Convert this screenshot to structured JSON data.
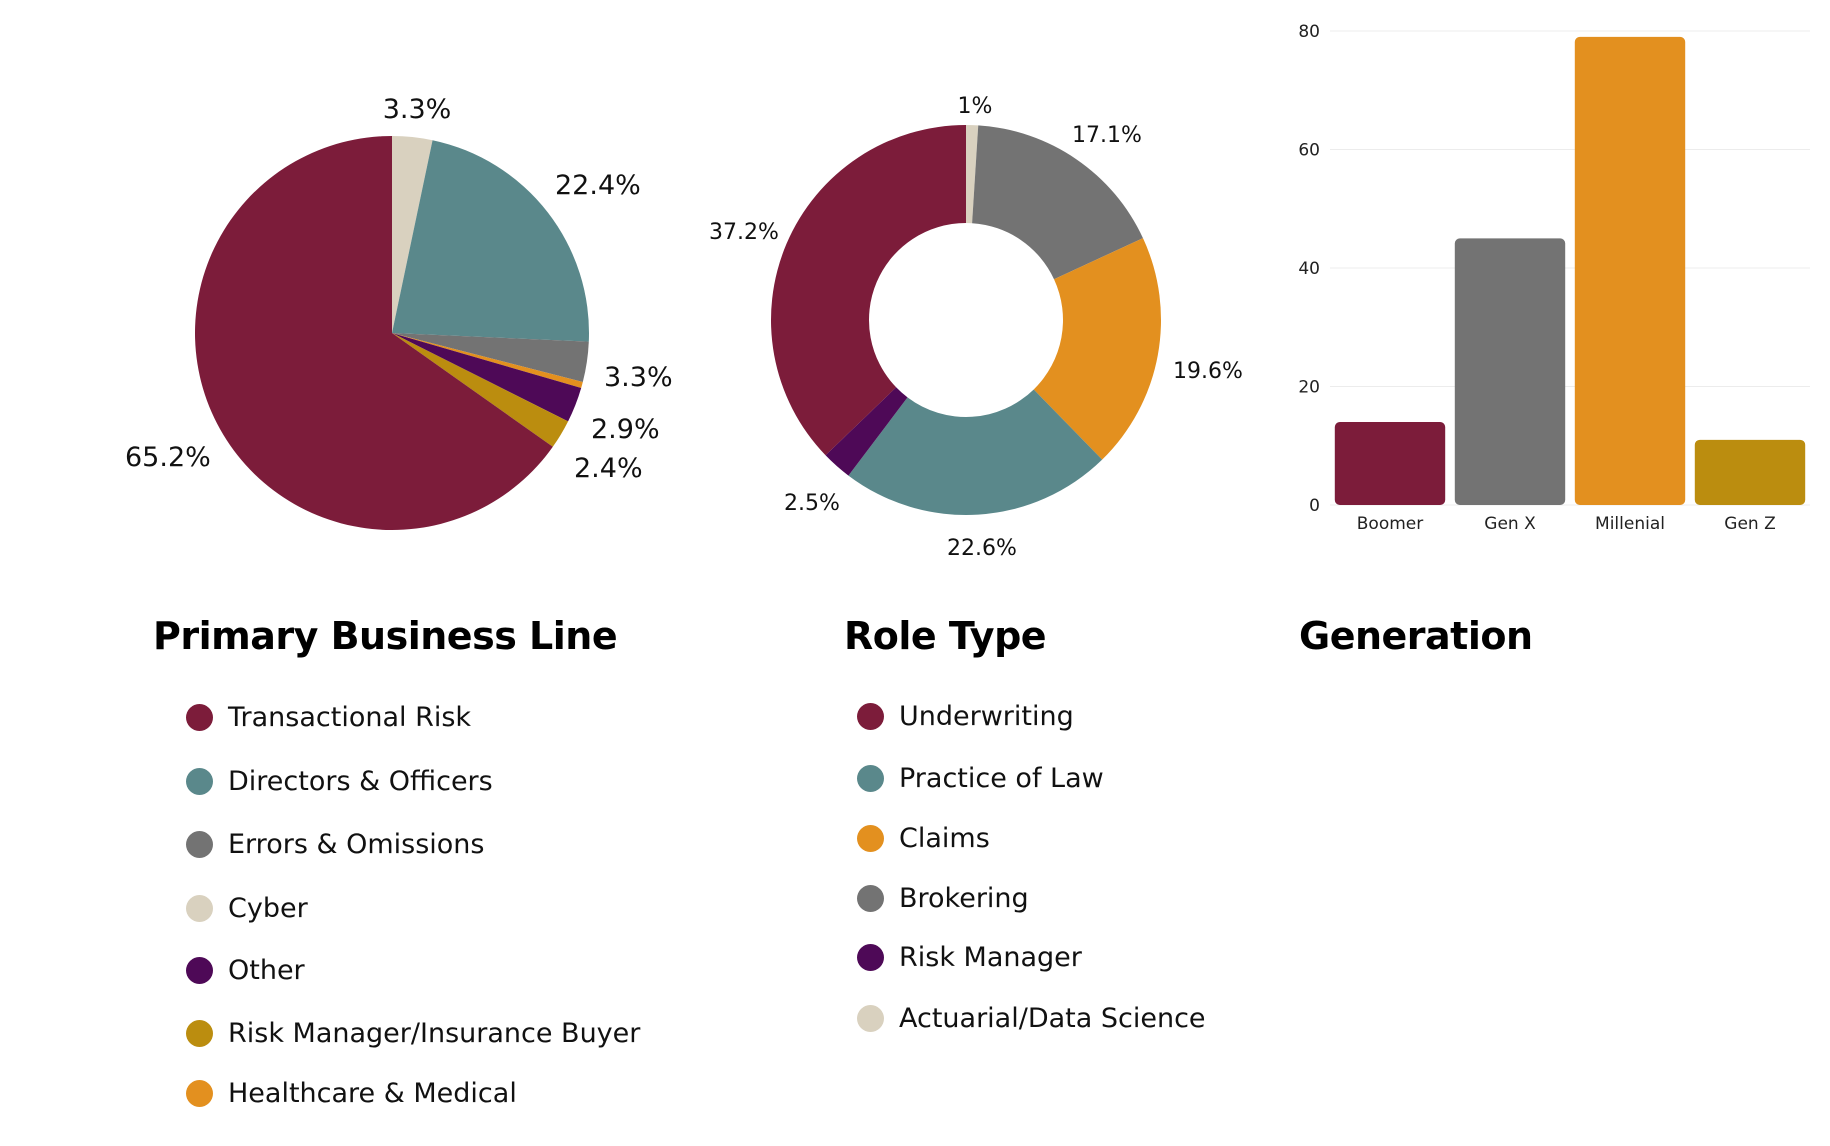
{
  "colors": {
    "maroon": "#7c1c3a",
    "teal": "#5a888b",
    "gray": "#737373",
    "beige": "#d9d1bf",
    "purple": "#4e0957",
    "gold": "#bb8d0f",
    "orange": "#e3901f"
  },
  "chart_data": [
    {
      "type": "pie",
      "title": "Primary Business Line",
      "slices": [
        {
          "label": "Cyber",
          "value": 3.3,
          "display": "3.3%",
          "color": "#d9d1bf"
        },
        {
          "label": "Directors & Officers",
          "value": 22.4,
          "display": "22.4%",
          "color": "#5a888b"
        },
        {
          "label": "Errors & Omissions",
          "value": 3.3,
          "display": "3.3%",
          "color": "#737373"
        },
        {
          "label": "Healthcare & Medical",
          "value": 0.5,
          "display": "",
          "color": "#e3901f"
        },
        {
          "label": "Other",
          "value": 2.9,
          "display": "2.9%",
          "color": "#4e0957"
        },
        {
          "label": "Risk Manager/Insurance Buyer",
          "value": 2.4,
          "display": "2.4%",
          "color": "#bb8d0f"
        },
        {
          "label": "Transactional Risk",
          "value": 65.2,
          "display": "65.2%",
          "color": "#7c1c3a"
        }
      ],
      "legend": [
        {
          "label": "Transactional Risk",
          "color": "#7c1c3a"
        },
        {
          "label": "Directors & Officers",
          "color": "#5a888b"
        },
        {
          "label": "Errors & Omissions",
          "color": "#737373"
        },
        {
          "label": "Cyber",
          "color": "#d9d1bf"
        },
        {
          "label": "Other",
          "color": "#4e0957"
        },
        {
          "label": "Risk Manager/Insurance Buyer",
          "color": "#bb8d0f"
        },
        {
          "label": "Healthcare & Medical",
          "color": "#e3901f"
        }
      ]
    },
    {
      "type": "pie",
      "variant": "donut",
      "title": "Role Type",
      "slices": [
        {
          "label": "Actuarial/Data Science",
          "value": 1,
          "display": "1%",
          "color": "#d9d1bf"
        },
        {
          "label": "Brokering",
          "value": 17.1,
          "display": "17.1%",
          "color": "#737373"
        },
        {
          "label": "Claims",
          "value": 19.6,
          "display": "19.6%",
          "color": "#e3901f"
        },
        {
          "label": "Practice of Law",
          "value": 22.6,
          "display": "22.6%",
          "color": "#5a888b"
        },
        {
          "label": "Risk Manager",
          "value": 2.5,
          "display": "2.5%",
          "color": "#4e0957"
        },
        {
          "label": "Underwriting",
          "value": 37.2,
          "display": "37.2%",
          "color": "#7c1c3a"
        }
      ],
      "legend": [
        {
          "label": "Underwriting",
          "color": "#7c1c3a"
        },
        {
          "label": "Practice of Law",
          "color": "#5a888b"
        },
        {
          "label": "Claims",
          "color": "#e3901f"
        },
        {
          "label": "Brokering",
          "color": "#737373"
        },
        {
          "label": "Risk Manager",
          "color": "#4e0957"
        },
        {
          "label": "Actuarial/Data Science",
          "color": "#d9d1bf"
        }
      ]
    },
    {
      "type": "bar",
      "title": "Generation",
      "categories": [
        "Boomer",
        "Gen X",
        "Millenial",
        "Gen Z"
      ],
      "values": [
        14,
        45,
        79,
        11
      ],
      "colors": [
        "#7c1c3a",
        "#737373",
        "#e3901f",
        "#bb8d0f"
      ],
      "yticks": [
        "0",
        "20",
        "40",
        "60",
        "80"
      ],
      "ylim": [
        0,
        80
      ],
      "grid": true,
      "xlabel": "",
      "ylabel": ""
    }
  ]
}
